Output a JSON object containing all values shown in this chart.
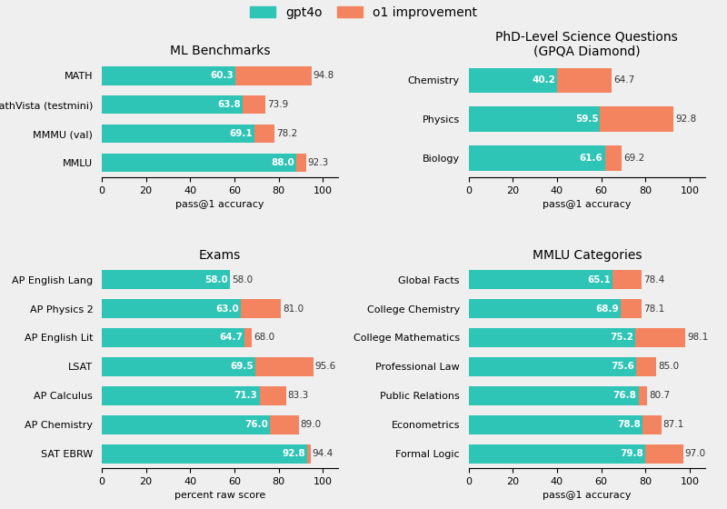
{
  "teal": "#2ec4b6",
  "orange": "#f4845f",
  "bg": "#efefef",
  "legend_gpt4o": "gpt4o",
  "legend_o1": "o1 improvement",
  "panels": [
    {
      "title": "ML Benchmarks",
      "xlabel": "pass@1 accuracy",
      "categories": [
        "MMLU",
        "MMMU (val)",
        "MathVista (testmini)",
        "MATH"
      ],
      "gpt4o": [
        88.0,
        69.1,
        63.8,
        60.3
      ],
      "o1_total": [
        92.3,
        78.2,
        73.9,
        94.8
      ]
    },
    {
      "title": "PhD-Level Science Questions\n(GPQA Diamond)",
      "xlabel": "pass@1 accuracy",
      "categories": [
        "Biology",
        "Physics",
        "Chemistry"
      ],
      "gpt4o": [
        61.6,
        59.5,
        40.2
      ],
      "o1_total": [
        69.2,
        92.8,
        64.7
      ]
    },
    {
      "title": "Exams",
      "xlabel": "percent raw score",
      "categories": [
        "SAT EBRW",
        "AP Chemistry",
        "AP Calculus",
        "LSAT",
        "AP English Lit",
        "AP Physics 2",
        "AP English Lang"
      ],
      "gpt4o": [
        92.8,
        76.0,
        71.3,
        69.5,
        64.7,
        63.0,
        58.0
      ],
      "o1_total": [
        94.4,
        89.0,
        83.3,
        95.6,
        68.0,
        81.0,
        58.0
      ]
    },
    {
      "title": "MMLU Categories",
      "xlabel": "pass@1 accuracy",
      "categories": [
        "Formal Logic",
        "Econometrics",
        "Public Relations",
        "Professional Law",
        "College Mathematics",
        "College Chemistry",
        "Global Facts"
      ],
      "gpt4o": [
        79.8,
        78.8,
        76.8,
        75.6,
        75.2,
        68.9,
        65.1
      ],
      "o1_total": [
        97.0,
        87.1,
        80.7,
        85.0,
        98.1,
        78.1,
        78.4
      ]
    }
  ]
}
